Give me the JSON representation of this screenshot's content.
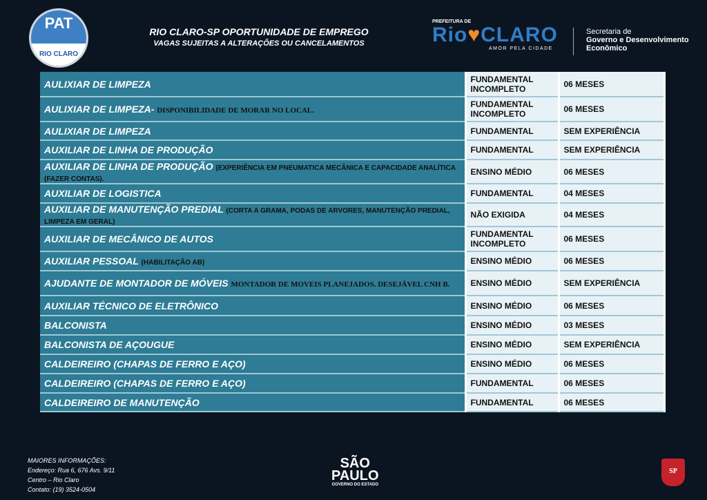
{
  "header": {
    "pat_logo": {
      "title": "PAT",
      "subtitle": "RIO CLARO"
    },
    "title": "RIO CLARO-SP OPORTUNIDADE DE EMPREGO",
    "subtitle": "VAGAS SUJEITAS A ALTERAÇÕES OU CANCELAMENTOS",
    "prefeitura": {
      "pre": "PREFEITURA DE",
      "logo_left": "Rio",
      "logo_right": "CLARO",
      "tagline": "AMOR PELA CIDADE"
    },
    "secretaria": {
      "line1": "Secretaria de",
      "line2": "Governo e Desenvolvimento",
      "line3": "Econômico"
    }
  },
  "jobs": [
    {
      "title": "AULIXIAR DE LIMPEZA",
      "extra": "",
      "education": "FUNDAMENTAL INCOMPLETO",
      "experience": "06 MESES"
    },
    {
      "title": "AULIXIAR DE LIMPEZA-",
      "extra": "DISPONIBILIDADE DE MORAR NO LOCAL.",
      "education": "FUNDAMENTAL INCOMPLETO",
      "experience": "06 MESES"
    },
    {
      "title": "AULIXIAR DE LIMPEZA",
      "extra": "",
      "education": "FUNDAMENTAL",
      "experience": "SEM EXPERIÊNCIA"
    },
    {
      "title": "AUXILIAR DE LINHA DE PRODUÇÃO",
      "extra": "",
      "education": "FUNDAMENTAL",
      "experience": "SEM EXPERIÊNCIA"
    },
    {
      "title": "AUXILIAR DE LINHA DE PRODUÇÃO",
      "extra": "(EXPERIÊNCIA EM PNEUMATICA MECÂNICA E CAPACIDADE ANALÍTICA (FAZER CONTAS).",
      "education": "ENSINO MÉDIO",
      "experience": "06 MESES"
    },
    {
      "title": "AUXILIAR DE LOGISTICA",
      "extra": "",
      "education": "FUNDAMENTAL",
      "experience": "04 MESES"
    },
    {
      "title": "AUXILIAR DE MANUTENÇÃO PREDIAL",
      "extra": "(CORTA A GRAMA, PODAS DE ARVORES, MANUTENÇÃO PREDIAL, LIMPEZA EM GERAL)",
      "education": "NÃO EXIGIDA",
      "experience": "04 MESES"
    },
    {
      "title": "AUXILIAR DE MECÂNICO DE AUTOS",
      "extra": "",
      "education": "FUNDAMENTAL INCOMPLETO",
      "experience": "06 MESES"
    },
    {
      "title": "AUXILIAR PESSOAL",
      "extra": "(HABILITAÇÃO AB)",
      "education": "ENSINO MÉDIO",
      "experience": "06 MESES"
    },
    {
      "title": "AJUDANTE DE MONTADOR DE MÓVEIS",
      "extra": "MONTADOR DE MOVEIS PLANEJADOS. DESEJÁVEL CNH B.",
      "education": "ENSINO MÉDIO",
      "experience": "SEM EXPERIÊNCIA"
    },
    {
      "title": "AUXILIAR TÉCNICO DE ELETRÔNICO",
      "extra": "",
      "education": "ENSINO MÉDIO",
      "experience": "06 MESES"
    },
    {
      "title": "BALCONISTA",
      "extra": "",
      "education": "ENSINO MÉDIO",
      "experience": "03 MESES"
    },
    {
      "title": "BALCONISTA DE AÇOUGUE",
      "extra": "",
      "education": "ENSINO MÉDIO",
      "experience": "SEM EXPERIÊNCIA"
    },
    {
      "title": "CALDEIREIRO (CHAPAS DE FERRO E AÇO)",
      "extra": "",
      "education": "ENSINO MÉDIO",
      "experience": "06 MESES"
    },
    {
      "title": "CALDEIREIRO (CHAPAS DE FERRO E AÇO)",
      "extra": "",
      "education": "FUNDAMENTAL",
      "experience": "06 MESES"
    },
    {
      "title": "CALDEIREIRO DE MANUTENÇÃO",
      "extra": "",
      "education": "FUNDAMENTAL",
      "experience": "06 MESES"
    }
  ],
  "footer": {
    "heading": "MAIORES INFORMAÇÕES:",
    "address": "Endereço: Rua 6, 676 Avs. 9/11",
    "district": "Centro – Rio Claro",
    "contact": "Contato: (19) 3524-0504",
    "sp_logo": {
      "line1": "SÃO",
      "line2": "PAULO",
      "line3": "GOVERNO DO ESTADO"
    },
    "crest": "SP"
  }
}
